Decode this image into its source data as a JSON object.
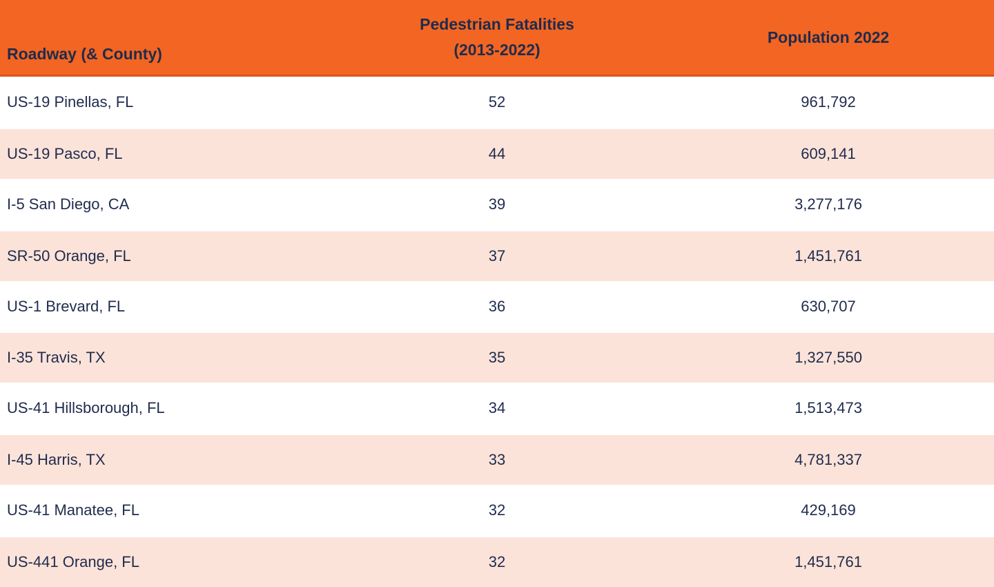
{
  "colors": {
    "header_bg": "#F26522",
    "header_divider": "#DE5415",
    "alt_row_bg": "#FCE3D9",
    "row_bg": "#FFFFFF",
    "text": "#1F2B4D"
  },
  "table": {
    "header": {
      "roadway": "Roadway (& County)",
      "fatalities_line1": "Pedestrian Fatalities",
      "fatalities_line2": "(2013-2022)",
      "population": "Population 2022"
    },
    "rows": [
      {
        "roadway": "US-19 Pinellas, FL",
        "fatalities": "52",
        "population": "961,792"
      },
      {
        "roadway": "US-19 Pasco, FL",
        "fatalities": "44",
        "population": "609,141"
      },
      {
        "roadway": "I-5 San Diego, CA",
        "fatalities": "39",
        "population": "3,277,176"
      },
      {
        "roadway": "SR-50 Orange, FL",
        "fatalities": "37",
        "population": "1,451,761"
      },
      {
        "roadway": "US-1 Brevard, FL",
        "fatalities": "36",
        "population": "630,707"
      },
      {
        "roadway": "I-35 Travis, TX",
        "fatalities": "35",
        "population": "1,327,550"
      },
      {
        "roadway": "US-41 Hillsborough, FL",
        "fatalities": "34",
        "population": "1,513,473"
      },
      {
        "roadway": "I-45 Harris, TX",
        "fatalities": "33",
        "population": "4,781,337"
      },
      {
        "roadway": "US-41 Manatee, FL",
        "fatalities": "32",
        "population": "429,169"
      },
      {
        "roadway": "US-441 Orange, FL",
        "fatalities": "32",
        "population": "1,451,761"
      }
    ]
  },
  "chart_data": {
    "type": "table",
    "columns": [
      "Roadway (& County)",
      "Pedestrian Fatalities (2013-2022)",
      "Population 2022"
    ],
    "rows": [
      [
        "US-19 Pinellas, FL",
        52,
        961792
      ],
      [
        "US-19 Pasco, FL",
        44,
        609141
      ],
      [
        "I-5 San Diego, CA",
        39,
        3277176
      ],
      [
        "SR-50 Orange, FL",
        37,
        1451761
      ],
      [
        "US-1 Brevard, FL",
        36,
        630707
      ],
      [
        "I-35 Travis, TX",
        35,
        1327550
      ],
      [
        "US-41 Hillsborough, FL",
        34,
        1513473
      ],
      [
        "I-45 Harris, TX",
        33,
        4781337
      ],
      [
        "US-41 Manatee, FL",
        32,
        429169
      ],
      [
        "US-441 Orange, FL",
        32,
        1451761
      ]
    ],
    "layout_hints": {
      "header_bg": "#F26522",
      "alternating_rows": true,
      "column_alignment": [
        "left",
        "center",
        "center"
      ]
    }
  }
}
